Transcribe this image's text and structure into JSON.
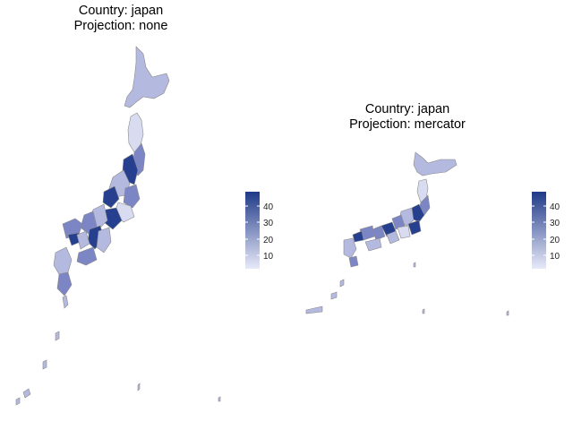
{
  "panels": [
    {
      "title_line1": "Country: japan",
      "title_line2": "Projection: none"
    },
    {
      "title_line1": "Country: japan",
      "title_line2": "Projection: mercator"
    }
  ],
  "legend": {
    "ticks": [
      "40",
      "30",
      "20",
      "10"
    ],
    "color_low": "#e8eaf8",
    "color_high": "#1f3a88"
  },
  "colors": {
    "region_light": "#b4b9e0",
    "region_mid": "#7d86c4",
    "region_dark": "#26408f",
    "outline": "#8a8a8a"
  }
}
